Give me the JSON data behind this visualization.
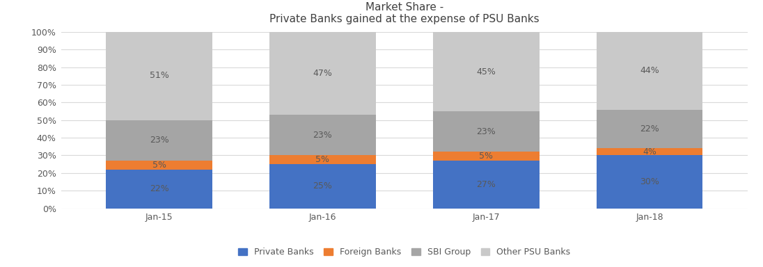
{
  "title_line1": "Market Share -",
  "title_line2": "Private Banks gained at the expense of PSU Banks",
  "categories": [
    "Jan-15",
    "Jan-16",
    "Jan-17",
    "Jan-18"
  ],
  "series": {
    "Private Banks": [
      22,
      25,
      27,
      30
    ],
    "Foreign Banks": [
      5,
      5,
      5,
      4
    ],
    "SBI Group": [
      23,
      23,
      23,
      22
    ],
    "Other PSU Banks": [
      51,
      47,
      45,
      44
    ]
  },
  "colors": {
    "Private Banks": "#4472C4",
    "Foreign Banks": "#ED7D31",
    "SBI Group": "#A5A5A5",
    "Other PSU Banks": "#C9C9C9"
  },
  "labels": {
    "Private Banks": [
      "22%",
      "25%",
      "27%",
      "30%"
    ],
    "Foreign Banks": [
      "5%",
      "5%",
      "5%",
      "4%"
    ],
    "SBI Group": [
      "23%",
      "23%",
      "23%",
      "22%"
    ],
    "Other PSU Banks": [
      "51%",
      "47%",
      "45%",
      "44%"
    ]
  },
  "ylim": [
    0,
    100
  ],
  "yticks": [
    0,
    10,
    20,
    30,
    40,
    50,
    60,
    70,
    80,
    90,
    100
  ],
  "ytick_labels": [
    "0%",
    "10%",
    "20%",
    "30%",
    "40%",
    "50%",
    "60%",
    "70%",
    "80%",
    "90%",
    "100%"
  ],
  "bar_width": 0.65,
  "background_color": "#FFFFFF",
  "grid_color": "#D9D9D9",
  "text_color": "#595959",
  "title_color": "#404040",
  "legend_order": [
    "Private Banks",
    "Foreign Banks",
    "SBI Group",
    "Other PSU Banks"
  ]
}
